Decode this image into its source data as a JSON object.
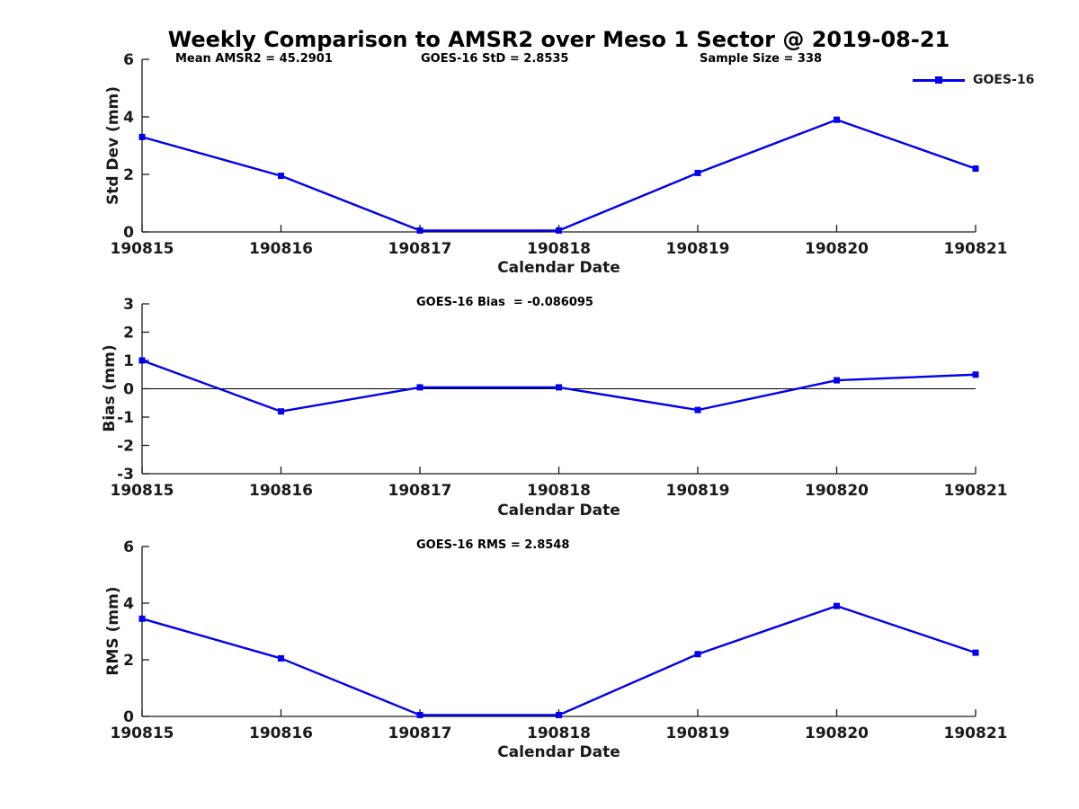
{
  "title": "Weekly Comparison to AMSR2 over Meso 1 Sector @ 2019-08-21",
  "legend": {
    "label": "GOES-16"
  },
  "line_color": "#0000ee",
  "axis_color": "#1a1a1a",
  "chart_data": [
    {
      "type": "line",
      "name": "std-dev-subplot",
      "ylabel": "Std Dev (mm)",
      "xlabel": "Calendar Date",
      "ylim": [
        0,
        6
      ],
      "yticks": [
        0,
        2,
        4,
        6
      ],
      "categories": [
        "190815",
        "190816",
        "190817",
        "190818",
        "190819",
        "190820",
        "190821"
      ],
      "series": [
        {
          "name": "GOES-16",
          "values": [
            3.3,
            1.95,
            0.05,
            0.05,
            2.05,
            3.9,
            2.2
          ]
        }
      ],
      "annotations": [
        "Mean AMSR2 = 45.2901",
        "GOES-16 StD = 2.8535",
        "Sample Size = 338"
      ],
      "zero_line": false,
      "legend_position": "top-right",
      "grid": false
    },
    {
      "type": "line",
      "name": "bias-subplot",
      "ylabel": "Bias (mm)",
      "xlabel": "Calendar Date",
      "ylim": [
        -3,
        3
      ],
      "yticks": [
        -3,
        -2,
        -1,
        0,
        1,
        2,
        3
      ],
      "categories": [
        "190815",
        "190816",
        "190817",
        "190818",
        "190819",
        "190820",
        "190821"
      ],
      "series": [
        {
          "name": "GOES-16",
          "values": [
            1.0,
            -0.8,
            0.05,
            0.05,
            -0.75,
            0.3,
            0.5
          ]
        }
      ],
      "annotations": [
        "GOES-16 Bias  = -0.086095"
      ],
      "zero_line": true,
      "grid": false
    },
    {
      "type": "line",
      "name": "rms-subplot",
      "ylabel": "RMS (mm)",
      "xlabel": "Calendar Date",
      "ylim": [
        0,
        6
      ],
      "yticks": [
        0,
        2,
        4,
        6
      ],
      "categories": [
        "190815",
        "190816",
        "190817",
        "190818",
        "190819",
        "190820",
        "190821"
      ],
      "series": [
        {
          "name": "GOES-16",
          "values": [
            3.45,
            2.05,
            0.05,
            0.05,
            2.2,
            3.9,
            2.25
          ]
        }
      ],
      "annotations": [
        "GOES-16 RMS = 2.8548"
      ],
      "zero_line": false,
      "grid": false
    }
  ]
}
